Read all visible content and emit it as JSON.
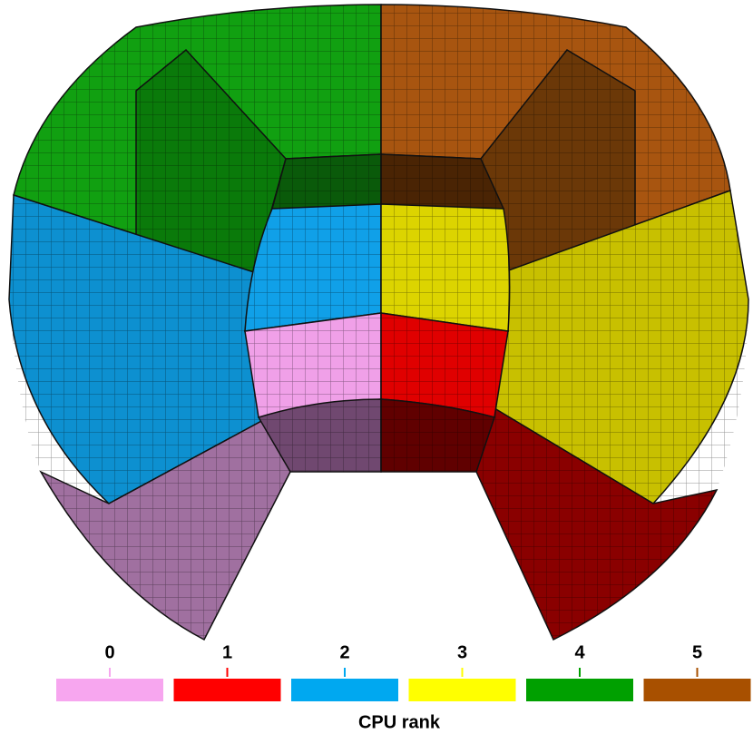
{
  "legend": {
    "title": "CPU rank",
    "entries": [
      {
        "label": "0",
        "color": "#f7a6ef"
      },
      {
        "label": "1",
        "color": "#ff0000"
      },
      {
        "label": "2",
        "color": "#00a8f0"
      },
      {
        "label": "3",
        "color": "#ffff00"
      },
      {
        "label": "4",
        "color": "#00a000"
      },
      {
        "label": "5",
        "color": "#a85000"
      }
    ]
  }
}
